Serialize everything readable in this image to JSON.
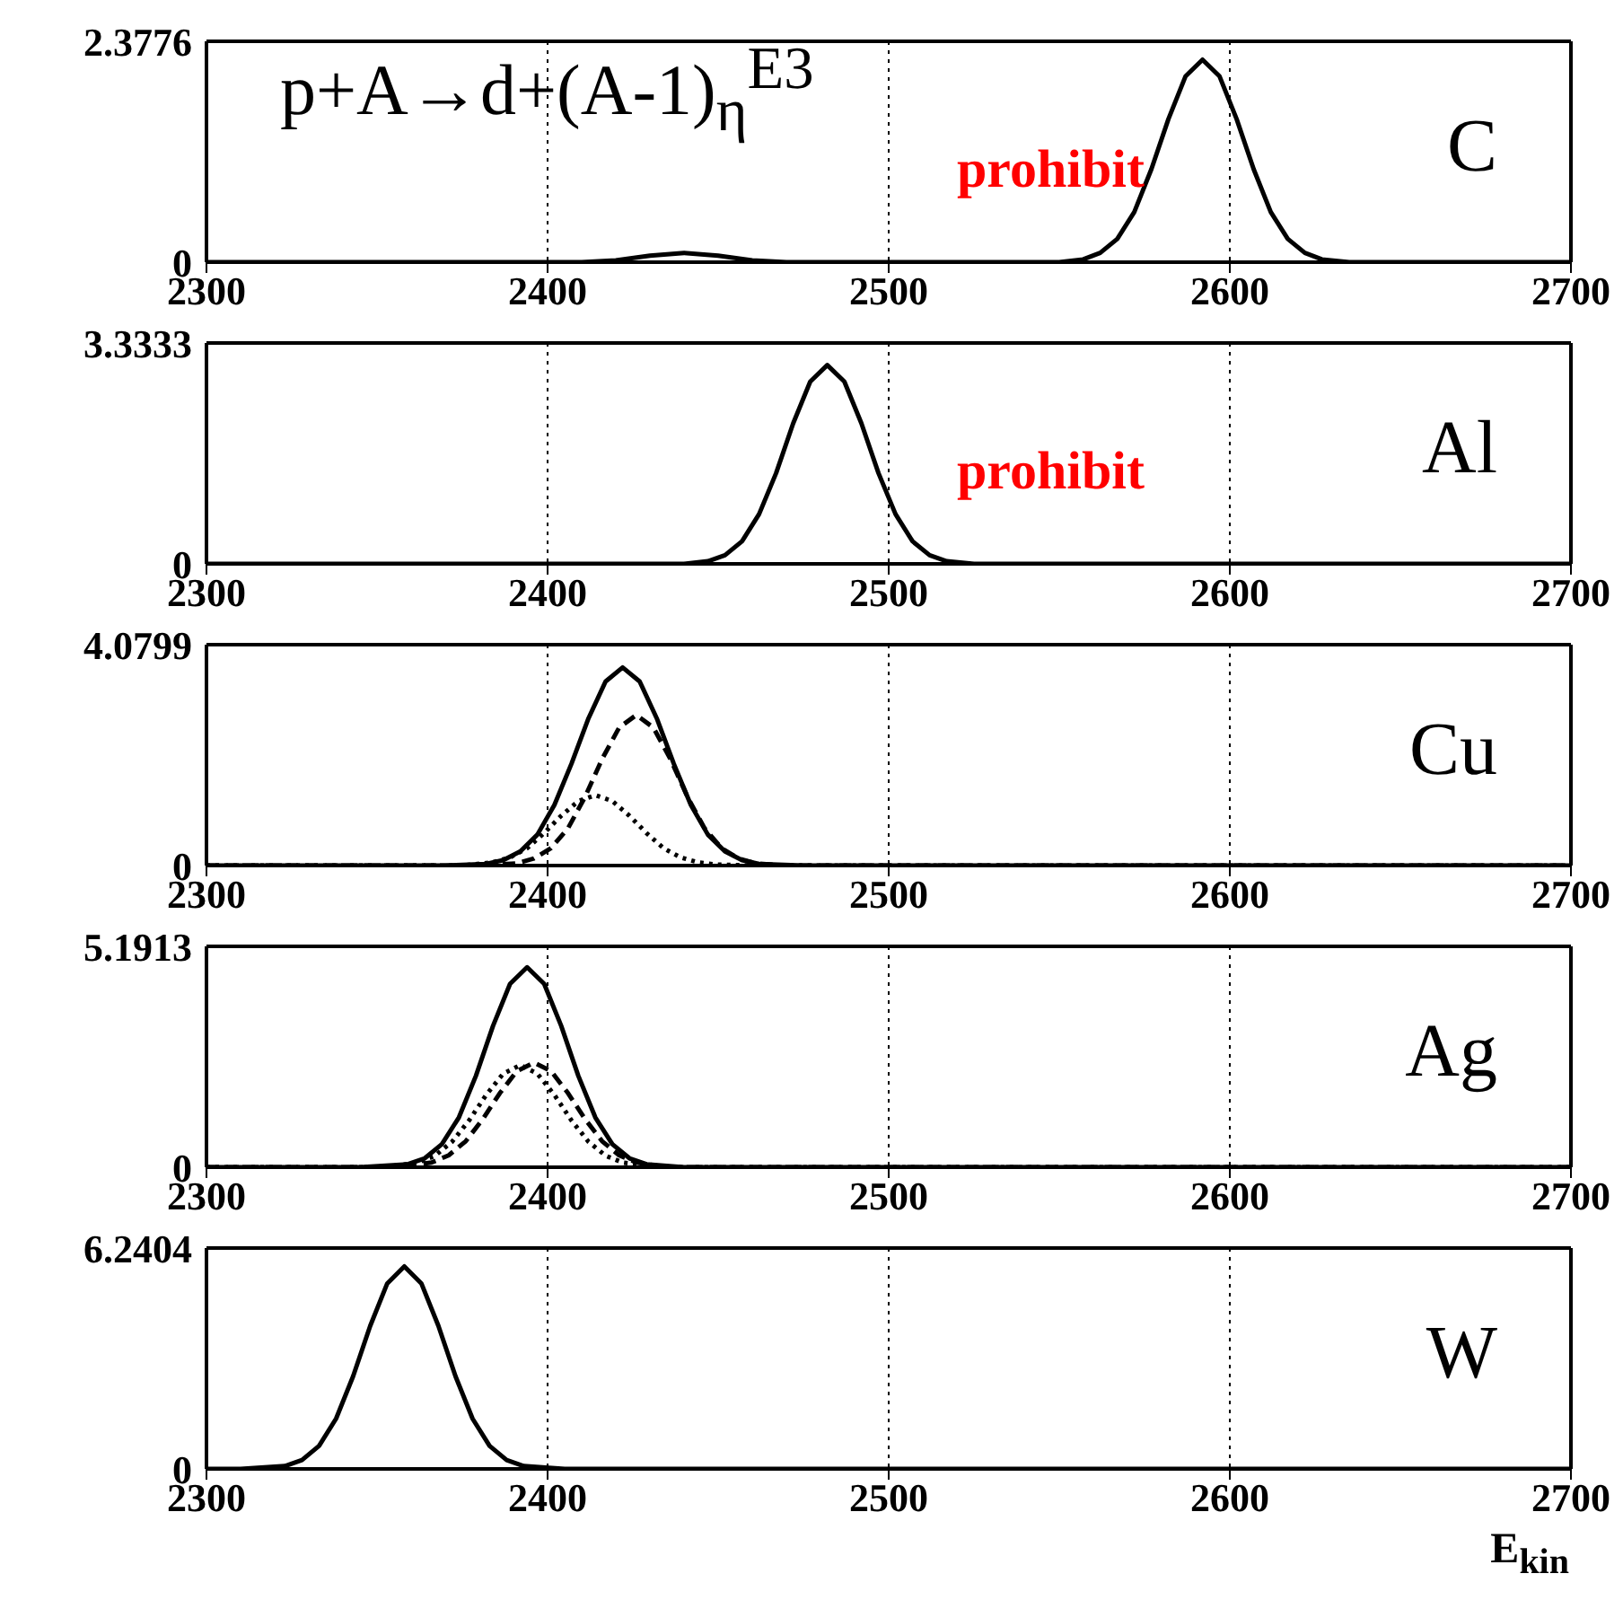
{
  "chart_data": [
    {
      "type": "line",
      "title": "C",
      "annotations": [
        "p+A→d+(A-1)$_{η}$$^{E3}$",
        "prohibit"
      ],
      "xlim": [
        2300,
        2700
      ],
      "xticks": [
        2300,
        2400,
        2500,
        2600,
        2700
      ],
      "ylim": [
        0,
        2.3776
      ],
      "yticks": [
        0,
        2.3776
      ],
      "grid": "x",
      "series": [
        {
          "color": "#000000",
          "line_style": "solid",
          "x": [
            2300,
            2410,
            2420,
            2430,
            2440,
            2450,
            2460,
            2470,
            2550,
            2557,
            2562,
            2567,
            2572,
            2577,
            2582,
            2587,
            2592,
            2597,
            2602,
            2607,
            2612,
            2617,
            2622,
            2627,
            2635,
            2700
          ],
          "values": [
            0,
            0,
            0.02,
            0.07,
            0.1,
            0.07,
            0.02,
            0,
            0,
            0.03,
            0.1,
            0.25,
            0.54,
            1.0,
            1.54,
            2.0,
            2.18,
            2.0,
            1.54,
            1.0,
            0.54,
            0.25,
            0.1,
            0.03,
            0,
            0
          ]
        }
      ]
    },
    {
      "type": "line",
      "title": "Al",
      "annotations": [
        "prohibit"
      ],
      "xlim": [
        2300,
        2700
      ],
      "xticks": [
        2300,
        2400,
        2500,
        2600,
        2700
      ],
      "ylim": [
        0,
        3.3333
      ],
      "yticks": [
        0,
        3.3333
      ],
      "grid": "x",
      "series": [
        {
          "color": "#000000",
          "line_style": "solid",
          "x": [
            2300,
            2440,
            2447,
            2452,
            2457,
            2462,
            2467,
            2472,
            2477,
            2482,
            2487,
            2492,
            2497,
            2502,
            2507,
            2512,
            2517,
            2525,
            2700
          ],
          "values": [
            0,
            0,
            0.04,
            0.13,
            0.34,
            0.75,
            1.37,
            2.12,
            2.75,
            3.0,
            2.75,
            2.12,
            1.37,
            0.75,
            0.34,
            0.13,
            0.04,
            0,
            0
          ]
        }
      ]
    },
    {
      "type": "line",
      "title": "Cu",
      "xlim": [
        2300,
        2700
      ],
      "xticks": [
        2300,
        2400,
        2500,
        2600,
        2700
      ],
      "ylim": [
        0,
        4.0799
      ],
      "yticks": [
        0,
        4.0799
      ],
      "grid": "x",
      "series": [
        {
          "color": "#000000",
          "line_style": "solid",
          "x": [
            2300,
            2370,
            2382,
            2387,
            2392,
            2397,
            2402,
            2407,
            2412,
            2417,
            2422,
            2427,
            2432,
            2437,
            2442,
            2447,
            2452,
            2457,
            2462,
            2475,
            2700
          ],
          "values": [
            0,
            0,
            0.03,
            0.1,
            0.26,
            0.57,
            1.12,
            1.88,
            2.72,
            3.4,
            3.66,
            3.4,
            2.72,
            1.88,
            1.12,
            0.57,
            0.26,
            0.1,
            0.03,
            0,
            0
          ]
        },
        {
          "color": "#000000",
          "line_style": "dashed",
          "x": [
            2300,
            2380,
            2391,
            2396,
            2401,
            2406,
            2411,
            2416,
            2421,
            2426,
            2431,
            2436,
            2441,
            2446,
            2451,
            2456,
            2461,
            2470,
            2700
          ],
          "values": [
            0,
            0,
            0.04,
            0.13,
            0.32,
            0.69,
            1.27,
            1.97,
            2.55,
            2.78,
            2.55,
            1.97,
            1.27,
            0.69,
            0.32,
            0.13,
            0.04,
            0,
            0
          ]
        },
        {
          "color": "#000000",
          "line_style": "dotted",
          "x": [
            2300,
            2375,
            2384,
            2389,
            2394,
            2399,
            2404,
            2409,
            2414,
            2419,
            2424,
            2429,
            2434,
            2439,
            2444,
            2449,
            2460,
            2700
          ],
          "values": [
            0,
            0,
            0.06,
            0.15,
            0.32,
            0.6,
            0.92,
            1.19,
            1.3,
            1.19,
            0.92,
            0.6,
            0.32,
            0.15,
            0.06,
            0.02,
            0,
            0
          ]
        }
      ]
    },
    {
      "type": "line",
      "title": "Ag",
      "xlim": [
        2300,
        2700
      ],
      "xticks": [
        2300,
        2400,
        2500,
        2600,
        2700
      ],
      "ylim": [
        0,
        5.1913
      ],
      "yticks": [
        0,
        5.1913
      ],
      "grid": "x",
      "series": [
        {
          "color": "#000000",
          "line_style": "solid",
          "x": [
            2300,
            2345,
            2359,
            2364,
            2369,
            2374,
            2379,
            2384,
            2389,
            2394,
            2399,
            2404,
            2409,
            2414,
            2419,
            2424,
            2429,
            2440,
            2700
          ],
          "values": [
            0,
            0,
            0.07,
            0.21,
            0.54,
            1.17,
            2.15,
            3.32,
            4.31,
            4.7,
            4.31,
            3.32,
            2.15,
            1.17,
            0.54,
            0.21,
            0.07,
            0,
            0
          ]
        },
        {
          "color": "#000000",
          "line_style": "dashed",
          "x": [
            2300,
            2355,
            2366,
            2371,
            2376,
            2381,
            2386,
            2391,
            2396,
            2401,
            2406,
            2411,
            2416,
            2421,
            2426,
            2435,
            2700
          ],
          "values": [
            0,
            0,
            0.11,
            0.28,
            0.61,
            1.13,
            1.74,
            2.26,
            2.46,
            2.26,
            1.74,
            1.13,
            0.61,
            0.28,
            0.11,
            0,
            0
          ]
        },
        {
          "color": "#000000",
          "line_style": "dotted",
          "x": [
            2300,
            2352,
            2362,
            2367,
            2372,
            2377,
            2382,
            2387,
            2392,
            2397,
            2402,
            2407,
            2412,
            2417,
            2422,
            2432,
            2700
          ],
          "values": [
            0,
            0,
            0.11,
            0.27,
            0.6,
            1.1,
            1.7,
            2.2,
            2.4,
            2.2,
            1.7,
            1.1,
            0.6,
            0.27,
            0.11,
            0,
            0
          ]
        }
      ]
    },
    {
      "type": "line",
      "title": "W",
      "xlabel": "E$_{kin}$",
      "xlim": [
        2300,
        2700
      ],
      "xticks": [
        2300,
        2400,
        2500,
        2600,
        2700
      ],
      "ylim": [
        0,
        6.2404
      ],
      "yticks": [
        0,
        6.2404
      ],
      "grid": "x",
      "series": [
        {
          "color": "#000000",
          "line_style": "solid",
          "x": [
            2300,
            2310,
            2323,
            2328,
            2333,
            2338,
            2343,
            2348,
            2353,
            2358,
            2363,
            2368,
            2373,
            2378,
            2383,
            2388,
            2393,
            2405,
            2700
          ],
          "values": [
            0,
            0,
            0.08,
            0.25,
            0.65,
            1.42,
            2.62,
            4.04,
            5.24,
            5.72,
            5.24,
            4.04,
            2.62,
            1.42,
            0.65,
            0.25,
            0.08,
            0,
            0
          ]
        }
      ]
    }
  ]
}
